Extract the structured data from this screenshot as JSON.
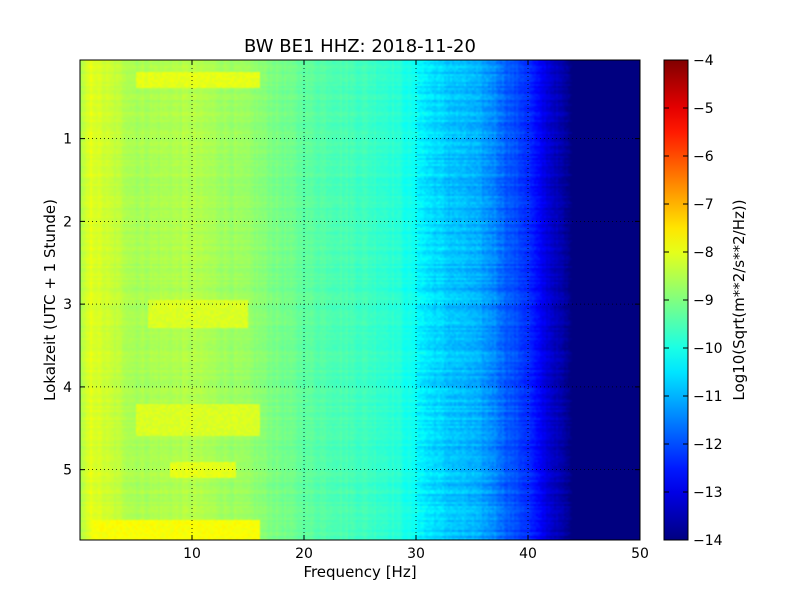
{
  "chart_data": {
    "type": "heatmap",
    "title": "BW BE1 HHZ: 2018-11-20",
    "xlabel": "Frequency [Hz]",
    "ylabel": "Lokalzeit (UTC + 1 Stunde)",
    "xlim": [
      0,
      50
    ],
    "ylim": [
      5.85,
      0.05
    ],
    "y_inverted": true,
    "x_ticks": [
      10,
      20,
      30,
      40,
      50
    ],
    "y_ticks": [
      1,
      2,
      3,
      4,
      5
    ],
    "grid": true,
    "colormap": "jet",
    "colorbar": {
      "label": "Log10(Sqrt(m**2/s**2/Hz))",
      "range": [
        -14,
        -4
      ],
      "ticks": [
        -4,
        -5,
        -6,
        -7,
        -8,
        -9,
        -10,
        -11,
        -12,
        -13,
        -14
      ]
    },
    "level_profile": {
      "frequency_hz": [
        0,
        1,
        2,
        5,
        10,
        15,
        20,
        25,
        28,
        30,
        31,
        33,
        35,
        37,
        38,
        40,
        41,
        42,
        43,
        44,
        50
      ],
      "log10_psd": [
        -8.6,
        -8.0,
        -8.2,
        -8.6,
        -8.5,
        -8.8,
        -9.3,
        -9.6,
        -9.8,
        -10.2,
        -10.5,
        -10.8,
        -11.0,
        -11.4,
        -11.8,
        -12.3,
        -12.8,
        -13.2,
        -13.6,
        -14.0,
        -14.0
      ]
    },
    "enhanced_bands": [
      {
        "time_h": [
          0.2,
          0.4
        ],
        "freq_hz": [
          5,
          16
        ],
        "log10_psd": -8.0
      },
      {
        "time_h": [
          2.95,
          3.3
        ],
        "freq_hz": [
          6,
          15
        ],
        "log10_psd": -8.1
      },
      {
        "time_h": [
          4.2,
          4.6
        ],
        "freq_hz": [
          5,
          16
        ],
        "log10_psd": -8.1
      },
      {
        "time_h": [
          4.9,
          5.1
        ],
        "freq_hz": [
          8,
          14
        ],
        "log10_psd": -8.0
      },
      {
        "time_h": [
          5.6,
          5.85
        ],
        "freq_hz": [
          1,
          16
        ],
        "log10_psd": -7.8
      }
    ]
  }
}
